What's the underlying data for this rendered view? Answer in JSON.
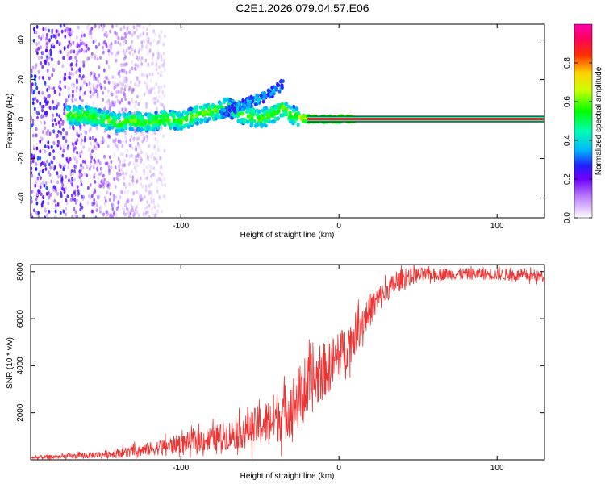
{
  "title": "C2E1.2026.079.04.57.E06",
  "colors": {
    "snr_line": "#ee3333",
    "frame": "#000000",
    "spectrogram_bg": "#ffffff"
  },
  "chart_data": [
    {
      "type": "heatmap",
      "name": "spectrogram",
      "xlabel": "Height of straight line (km)",
      "ylabel": "Frequency (Hz)",
      "xlim": [
        -195,
        130
      ],
      "ylim": [
        -50,
        48
      ],
      "xticks": [
        -100,
        0,
        100
      ],
      "xtick_labels": [
        "-100",
        "0",
        "100"
      ],
      "yticks": [
        -40,
        -20,
        0,
        20,
        40
      ],
      "ytick_labels": [
        "-40",
        "-20",
        "0",
        "20",
        "40"
      ],
      "colorbar": {
        "label": "Normalized spectral amplitude",
        "range": [
          0,
          1
        ],
        "ticks": [
          0,
          0.2,
          0.4,
          0.6,
          0.8
        ],
        "tick_labels": [
          "0.0",
          "0.2",
          "0.4",
          "0.6",
          "0.8"
        ]
      },
      "features": {
        "noise_region_x": [
          -195,
          -120
        ],
        "signal_ridge": [
          [
            -170,
            2
          ],
          [
            -160,
            2
          ],
          [
            -150,
            0
          ],
          [
            -140,
            -2
          ],
          [
            -130,
            -1
          ],
          [
            -120,
            -2
          ],
          [
            -110,
            0
          ],
          [
            -100,
            -1
          ],
          [
            -90,
            2
          ],
          [
            -80,
            4
          ],
          [
            -70,
            6
          ],
          [
            -60,
            2
          ],
          [
            -50,
            0
          ],
          [
            -40,
            3
          ],
          [
            -35,
            6
          ],
          [
            -30,
            2
          ],
          [
            -25,
            1
          ],
          [
            -20,
            0
          ],
          [
            -10,
            0
          ],
          [
            0,
            0
          ],
          [
            10,
            0
          ]
        ],
        "upper_branch": [
          [
            -75,
            2
          ],
          [
            -65,
            6
          ],
          [
            -55,
            9
          ],
          [
            -45,
            12
          ],
          [
            -38,
            16
          ],
          [
            -35,
            18
          ]
        ],
        "carrier_line": {
          "frequency": 0,
          "x_start": -20,
          "x_end": 130
        }
      }
    },
    {
      "type": "line",
      "name": "snr",
      "xlabel": "Height of straight line (km)",
      "ylabel": "SNR (10 * v/v)",
      "xlim": [
        -195,
        130
      ],
      "ylim": [
        0,
        8300
      ],
      "xticks": [
        -100,
        0,
        100
      ],
      "xtick_labels": [
        "-100",
        "0",
        "100"
      ],
      "yticks": [
        2000,
        4000,
        6000,
        8000
      ],
      "ytick_labels": [
        "2000",
        "4000",
        "6000",
        "8000"
      ],
      "trend": [
        [
          -195,
          100
        ],
        [
          -180,
          120
        ],
        [
          -160,
          180
        ],
        [
          -140,
          280
        ],
        [
          -120,
          450
        ],
        [
          -100,
          700
        ],
        [
          -80,
          900
        ],
        [
          -60,
          1200
        ],
        [
          -45,
          1600
        ],
        [
          -35,
          2000
        ],
        [
          -28,
          2400
        ],
        [
          -22,
          2900
        ],
        [
          -15,
          3400
        ],
        [
          -8,
          3900
        ],
        [
          0,
          4400
        ],
        [
          8,
          5100
        ],
        [
          15,
          5900
        ],
        [
          22,
          6600
        ],
        [
          30,
          7200
        ],
        [
          40,
          7700
        ],
        [
          50,
          7850
        ],
        [
          70,
          7900
        ],
        [
          90,
          7900
        ],
        [
          110,
          7850
        ],
        [
          130,
          7800
        ]
      ],
      "noise_amplitude": [
        [
          -195,
          80
        ],
        [
          -150,
          150
        ],
        [
          -100,
          400
        ],
        [
          -60,
          700
        ],
        [
          -40,
          1100
        ],
        [
          -25,
          1400
        ],
        [
          -10,
          1200
        ],
        [
          10,
          900
        ],
        [
          30,
          500
        ],
        [
          60,
          250
        ],
        [
          130,
          250
        ]
      ]
    }
  ]
}
